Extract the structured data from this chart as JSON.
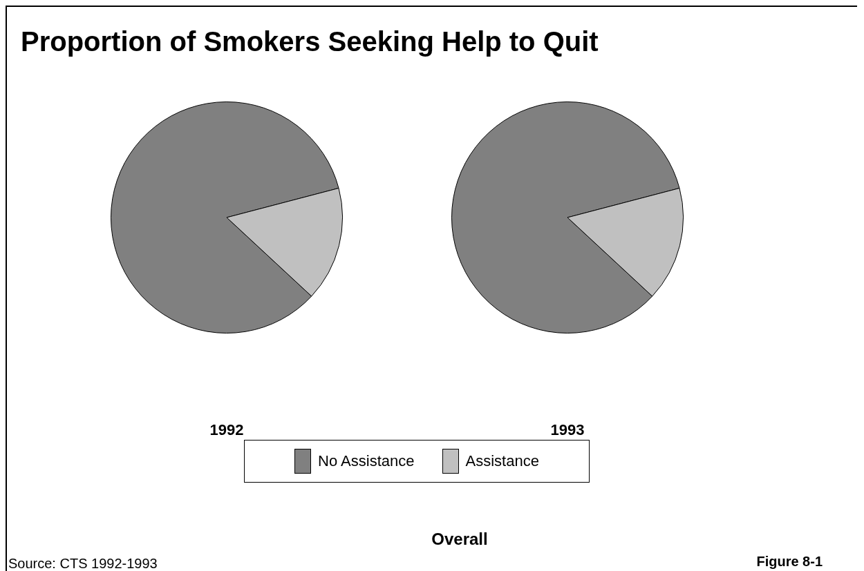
{
  "chart_data": {
    "type": "pie",
    "title": "Proportion of Smokers Seeking Help to Quit",
    "categories": [
      "No Assistance",
      "Assistance"
    ],
    "colors": [
      "#808080",
      "#c0c0c0"
    ],
    "legend": "bottom",
    "series": [
      {
        "name": "1992",
        "values": [
          84,
          16
        ]
      },
      {
        "name": "1993",
        "values": [
          84,
          16
        ]
      }
    ],
    "annotations": [
      "Overall",
      "Source: CTS 1992-1993",
      "Figure 8-1"
    ]
  }
}
